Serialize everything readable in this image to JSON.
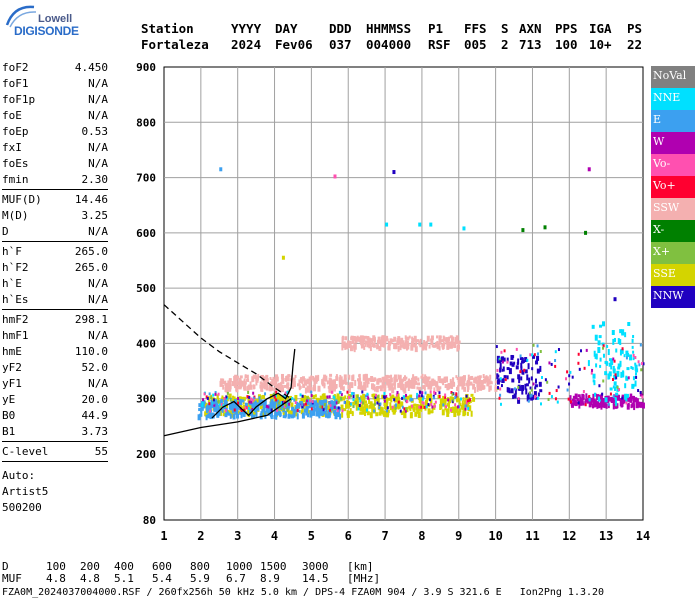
{
  "logo": {
    "top": "Lowell",
    "main": "DIGISONDE"
  },
  "header": {
    "labels": [
      "Station",
      "YYYY",
      "DAY",
      "DDD",
      "HHMMSS",
      "P1",
      "FFS",
      "S",
      "AXN",
      "PPS",
      "IGA",
      "PS"
    ],
    "values": [
      "Fortaleza",
      "2024",
      "Fev06",
      "037",
      "004000",
      "RSF",
      "005",
      "2",
      "713",
      "100",
      "10+",
      "22"
    ]
  },
  "params": [
    {
      "group": [
        {
          "name": "foF2",
          "value": "4.450"
        },
        {
          "name": "foF1",
          "value": "N/A"
        },
        {
          "name": "foF1p",
          "value": "N/A"
        },
        {
          "name": "foE",
          "value": "N/A"
        },
        {
          "name": "foEp",
          "value": "0.53"
        },
        {
          "name": "fxI",
          "value": "N/A"
        },
        {
          "name": "foEs",
          "value": "N/A"
        },
        {
          "name": "fmin",
          "value": "2.30"
        }
      ]
    },
    {
      "group": [
        {
          "name": "MUF(D)",
          "value": "14.46"
        },
        {
          "name": "M(D)",
          "value": "3.25"
        },
        {
          "name": "D",
          "value": "N/A"
        }
      ]
    },
    {
      "group": [
        {
          "name": "h`F",
          "value": "265.0"
        },
        {
          "name": "h`F2",
          "value": "265.0"
        },
        {
          "name": "h`E",
          "value": "N/A"
        },
        {
          "name": "h`Es",
          "value": "N/A"
        }
      ]
    },
    {
      "group": [
        {
          "name": "hmF2",
          "value": "298.1"
        },
        {
          "name": "hmF1",
          "value": "N/A"
        },
        {
          "name": "hmE",
          "value": "110.0"
        },
        {
          "name": "yF2",
          "value": "52.0"
        },
        {
          "name": "yF1",
          "value": "N/A"
        },
        {
          "name": "yE",
          "value": "20.0"
        },
        {
          "name": "B0",
          "value": "44.9"
        },
        {
          "name": "B1",
          "value": "3.73"
        }
      ]
    },
    {
      "group": [
        {
          "name": "C-level",
          "value": "55"
        }
      ]
    }
  ],
  "auto": [
    "Auto:",
    "Artist5",
    "500200"
  ],
  "legend": [
    {
      "label": "NoVal",
      "color": "#808080"
    },
    {
      "label": "NNE",
      "color": "#00e0ff"
    },
    {
      "label": "E",
      "color": "#3ca0f0"
    },
    {
      "label": "W",
      "color": "#b000b0"
    },
    {
      "label": "Vo-",
      "color": "#ff50b0"
    },
    {
      "label": "Vo+",
      "color": "#ff0030"
    },
    {
      "label": "SSW",
      "color": "#f4b0b0"
    },
    {
      "label": "X-",
      "color": "#008000"
    },
    {
      "label": "X+",
      "color": "#80c040"
    },
    {
      "label": "SSE",
      "color": "#d4d400"
    },
    {
      "label": "NNW",
      "color": "#2000c0"
    }
  ],
  "chart_data": {
    "type": "scatter",
    "x_ticks": [
      1,
      2,
      3,
      4,
      5,
      6,
      7,
      8,
      9,
      10,
      11,
      12,
      13,
      14
    ],
    "y_ticks": [
      80,
      200,
      300,
      400,
      500,
      600,
      700,
      800,
      900
    ],
    "xlim": [
      1,
      14
    ],
    "ylim": [
      80,
      900
    ],
    "y_scale": "nonlinear (80 at bottom, 100 km per division above 200)",
    "grid": true,
    "echo_bands": [
      {
        "direction": "SSE",
        "x": [
          2.0,
          9.4
        ],
        "y": [
          275,
          310
        ]
      },
      {
        "direction": "E",
        "x": [
          1.9,
          5.8
        ],
        "y": [
          270,
          300
        ]
      },
      {
        "direction": "SSW",
        "x": [
          2.5,
          10.0
        ],
        "y": [
          320,
          345
        ]
      },
      {
        "direction": "SSW",
        "x": [
          5.8,
          9.0
        ],
        "y": [
          395,
          415
        ]
      },
      {
        "direction": "NNW",
        "x": [
          10.0,
          11.2
        ],
        "y": [
          300,
          380
        ]
      },
      {
        "direction": "W",
        "x": [
          12.0,
          14.0
        ],
        "y": [
          290,
          310
        ]
      },
      {
        "direction": "NNE",
        "x": [
          12.5,
          13.8
        ],
        "y": [
          300,
          440
        ]
      }
    ],
    "isolated_points": [
      {
        "x": 2.5,
        "y": 715,
        "direction": "E"
      },
      {
        "x": 5.6,
        "y": 702,
        "direction": "Vo-"
      },
      {
        "x": 7.2,
        "y": 710,
        "direction": "NNW"
      },
      {
        "x": 7.0,
        "y": 615,
        "direction": "NNE"
      },
      {
        "x": 7.9,
        "y": 615,
        "direction": "NNE"
      },
      {
        "x": 8.2,
        "y": 615,
        "direction": "NNE"
      },
      {
        "x": 9.1,
        "y": 608,
        "direction": "NNE"
      },
      {
        "x": 10.7,
        "y": 605,
        "direction": "X-"
      },
      {
        "x": 11.3,
        "y": 610,
        "direction": "X-"
      },
      {
        "x": 12.4,
        "y": 600,
        "direction": "X-"
      },
      {
        "x": 12.5,
        "y": 715,
        "direction": "W"
      },
      {
        "x": 4.2,
        "y": 555,
        "direction": "SSE"
      },
      {
        "x": 13.2,
        "y": 480,
        "direction": "NNW"
      }
    ],
    "profile_dashed": [
      [
        1,
        470
      ],
      [
        1.5,
        440
      ],
      [
        2,
        410
      ],
      [
        2.5,
        385
      ],
      [
        3,
        365
      ],
      [
        3.5,
        345
      ],
      [
        4,
        320
      ],
      [
        4.45,
        300
      ]
    ],
    "profile_lower": [
      [
        1,
        233
      ],
      [
        2,
        248
      ],
      [
        3,
        258
      ],
      [
        3.8,
        270
      ],
      [
        4.45,
        300
      ]
    ],
    "trace_solid": [
      [
        2.3,
        265
      ],
      [
        2.6,
        285
      ],
      [
        2.9,
        295
      ],
      [
        3.1,
        282
      ],
      [
        3.3,
        270
      ],
      [
        3.5,
        285
      ],
      [
        3.8,
        300
      ],
      [
        4.1,
        310
      ],
      [
        4.3,
        300
      ],
      [
        4.45,
        320
      ],
      [
        4.5,
        360
      ],
      [
        4.55,
        390
      ]
    ]
  },
  "footer": {
    "row1_label": "D",
    "row1_values": [
      "100",
      "200",
      "400",
      "600",
      "800",
      "1000",
      "1500",
      "3000",
      "[km]"
    ],
    "row2_label": "MUF",
    "row2_values": [
      "4.8",
      "4.8",
      "5.1",
      "5.4",
      "5.9",
      "6.7",
      "8.9",
      "14.5",
      "[MHz]"
    ],
    "info": "FZA0M_2024037004000.RSF / 260fx256h 50 kHz 5.0 km / DPS-4 FZA0M 904 / 3.9 S 321.6 E   Ion2Png 1.3.20"
  }
}
